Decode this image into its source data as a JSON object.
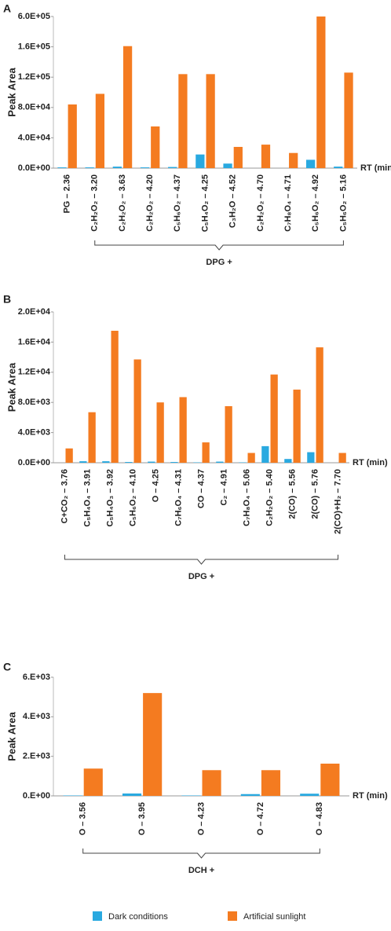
{
  "chart_data": [
    {
      "type": "bar",
      "panel": "A",
      "ylabel": "Peak Area",
      "xlabel": "RT (min)",
      "group_label": "DPG +",
      "categories": [
        "PG – 2.36",
        "C₂H₂O₂ – 3.20",
        "C₂H₂O₂ – 3.63",
        "C₂H₂O₂ – 4.20",
        "C₅H₆O₂ – 4.37",
        "C₅H₄O₂ – 4.25",
        "C₃H₂O – 4.52",
        "C₂H₂O₂ – 4.70",
        "C₇H₈O₄ – 4.71",
        "C₅H₆O₂ – 4.92",
        "C₅H₆O₂ – 5.16"
      ],
      "series": [
        {
          "name": "Dark conditions",
          "color": "#29a9e0",
          "values": [
            1000,
            1000,
            2000,
            1000,
            1500,
            18000,
            6000,
            0,
            0,
            11000,
            2000
          ]
        },
        {
          "name": "Artificial sunlight",
          "color": "#f47b20",
          "values": [
            84000,
            98000,
            170000,
            55000,
            124000,
            124000,
            28000,
            31000,
            20000,
            600000,
            126000
          ]
        }
      ],
      "ylim": [
        0,
        600000
      ],
      "yticks": [
        {
          "value": 0,
          "label": "0.0E+00"
        },
        {
          "value": 40000,
          "label": "4.0E+04"
        },
        {
          "value": 80000,
          "label": "8.0E+04"
        },
        {
          "value": 120000,
          "label": "1.2E+05"
        },
        {
          "value": 160000,
          "label": "1.6E+05"
        },
        {
          "value": 600000,
          "label": "6.0E+05"
        }
      ]
    },
    {
      "type": "bar",
      "panel": "B",
      "ylabel": "Peak Area",
      "xlabel": "RT (min)",
      "group_label": "DPG +",
      "categories": [
        "C+CO₂ – 3.76",
        "C₅H₄O₄ – 3.91",
        "C₅H₄O₃ – 3.92",
        "C₅H₆O₂ – 4.10",
        "O – 4.25",
        "C₇H₆O₄ – 4.31",
        "CO – 4.37",
        "C₂ – 4.91",
        "C₇H₈O₄ – 5.06",
        "C₂H₂O₂ – 5.40",
        "2(CO) – 5.56",
        "2(CO) – 5.76",
        "2(CO)+H₂ – 7.70"
      ],
      "series": [
        {
          "color": "#29a9e0",
          "values": [
            0,
            200,
            200,
            100,
            150,
            100,
            50,
            150,
            50,
            2200,
            500,
            1400,
            0
          ]
        },
        {
          "color": "#f47b20",
          "values": [
            1900,
            6700,
            17500,
            13700,
            8000,
            8700,
            2700,
            7500,
            1300,
            11700,
            9700,
            15300,
            1300
          ]
        }
      ],
      "ylim": [
        0,
        20000
      ],
      "yticks": [
        {
          "value": 0,
          "label": "0.0E+00"
        },
        {
          "value": 4000,
          "label": "4.0E+03"
        },
        {
          "value": 8000,
          "label": "8.0E+03"
        },
        {
          "value": 12000,
          "label": "1.2E+04"
        },
        {
          "value": 16000,
          "label": "1.6E+04"
        },
        {
          "value": 20000,
          "label": "2.0E+04"
        }
      ]
    },
    {
      "type": "bar",
      "panel": "C",
      "ylabel": "Peak Area",
      "xlabel": "RT (min)",
      "group_label": "DCH +",
      "categories": [
        "O – 3.56",
        "O – 3.95",
        "O – 4.23",
        "O – 4.72",
        "O – 4.83"
      ],
      "series": [
        {
          "color": "#29a9e0",
          "values": [
            20,
            120,
            20,
            90,
            110
          ]
        },
        {
          "color": "#f47b20",
          "values": [
            1380,
            5200,
            1300,
            1300,
            1630
          ]
        }
      ],
      "ylim": [
        0,
        6000
      ],
      "yticks": [
        {
          "value": 0,
          "label": "0.E+00"
        },
        {
          "value": 2000,
          "label": "2.E+03"
        },
        {
          "value": 4000,
          "label": "4.E+03"
        },
        {
          "value": 6000,
          "label": "6.E+03"
        }
      ]
    }
  ]
}
